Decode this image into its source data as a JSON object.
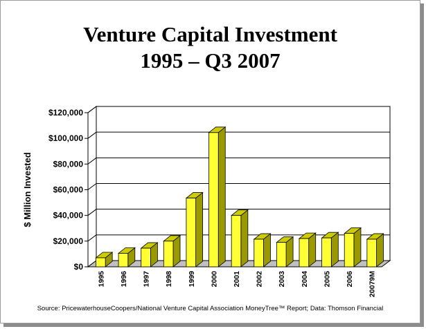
{
  "title_line1": "Venture Capital Investment",
  "title_line2": "1995 – Q3 2007",
  "source": "Source: PricewaterhouseCoopers/National Venture Capital Association MoneyTree™ Report; Data: Thomson Financial",
  "colors": {
    "bar_front": "#ffff33",
    "bar_side": "#9a9a00",
    "bar_top": "#cccc00",
    "grid": "#000000"
  },
  "chart_data": {
    "type": "bar",
    "title": "Venture Capital Investment 1995 – Q3 2007",
    "xlabel": "",
    "ylabel": "$ Million Invested",
    "categories": [
      "1995",
      "1996",
      "1997",
      "1998",
      "1999",
      "2000",
      "2001",
      "2002",
      "2003",
      "2004",
      "2005",
      "2006",
      "20079M"
    ],
    "values": [
      7000,
      10500,
      14500,
      20000,
      53500,
      104500,
      40000,
      21500,
      19000,
      22000,
      22500,
      26000,
      21500
    ],
    "ylim": [
      0,
      120000
    ],
    "yticks": [
      0,
      20000,
      40000,
      60000,
      80000,
      100000,
      120000
    ],
    "ytick_labels": [
      "$0",
      "$20,000",
      "$40,000",
      "$60,000",
      "$80,000",
      "$100,000",
      "$120,000"
    ],
    "grid": true,
    "legend": "none",
    "style": "3d"
  }
}
